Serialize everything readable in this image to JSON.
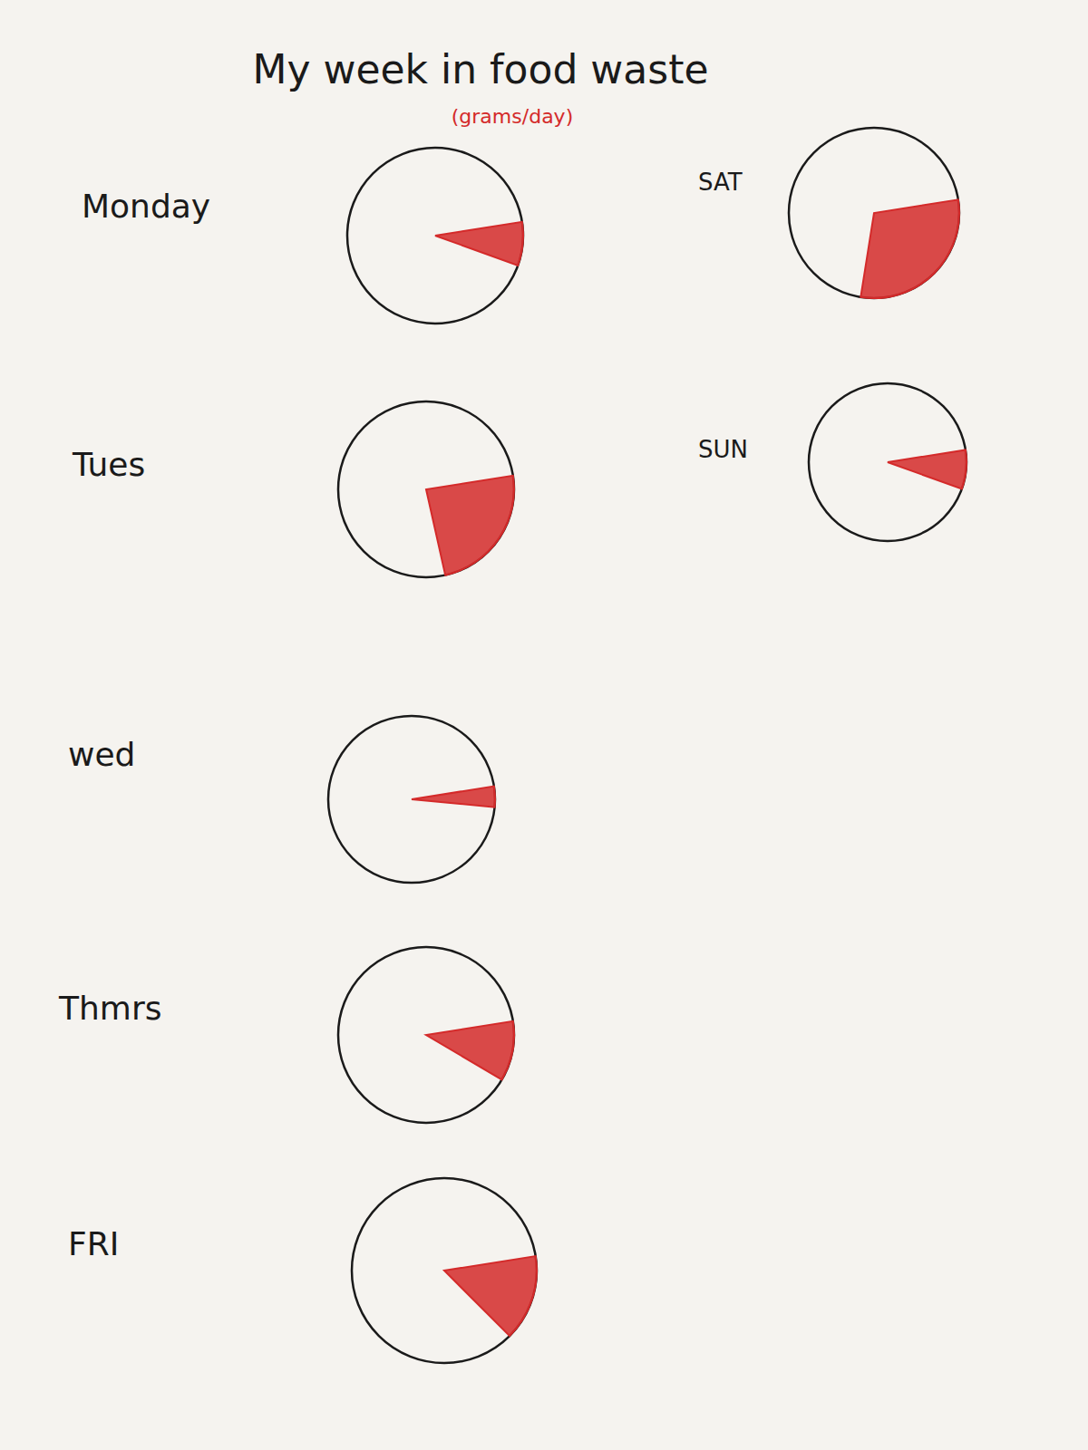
{
  "chart_data": {
    "type": "pie",
    "title": "My week in food waste",
    "subtitle": "(grams/day)",
    "categories": [
      "Monday",
      "Tues",
      "wed",
      "Thmrs",
      "FRI",
      "SAT",
      "SUN"
    ],
    "values": [
      8,
      24,
      4,
      11,
      15,
      30,
      8
    ],
    "color": "#d42a2a"
  }
}
